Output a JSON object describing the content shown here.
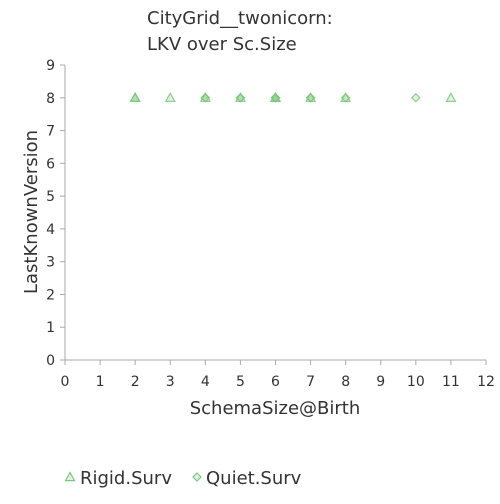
{
  "chart_data": {
    "type": "scatter",
    "title": [
      "CityGrid__twonicorn:",
      "LKV over Sc.Size"
    ],
    "xlabel": "SchemaSize@Birth",
    "ylabel": "LastKnownVersion",
    "xlim": [
      0,
      12
    ],
    "ylim": [
      0,
      9
    ],
    "xticks": [
      "0",
      "1",
      "2",
      "3",
      "4",
      "5",
      "6",
      "7",
      "8",
      "9",
      "10",
      "11",
      "12"
    ],
    "yticks": [
      "0",
      "1",
      "2",
      "3",
      "4",
      "5",
      "6",
      "7",
      "8",
      "9"
    ],
    "grid": false,
    "legend_position": "bottom",
    "series": [
      {
        "name": "Rigid.Surv",
        "marker": "triangle",
        "color": "#7ec87e",
        "points": [
          {
            "x": 2,
            "y": 8
          },
          {
            "x": 2,
            "y": 8
          },
          {
            "x": 2,
            "y": 8
          },
          {
            "x": 3,
            "y": 8
          },
          {
            "x": 4,
            "y": 8
          },
          {
            "x": 5,
            "y": 8
          },
          {
            "x": 6,
            "y": 8
          },
          {
            "x": 6,
            "y": 8
          },
          {
            "x": 7,
            "y": 8
          },
          {
            "x": 8,
            "y": 8
          },
          {
            "x": 11,
            "y": 8
          }
        ]
      },
      {
        "name": "Quiet.Surv",
        "marker": "diamond",
        "color": "#7ec87e",
        "points": [
          {
            "x": 4,
            "y": 8
          },
          {
            "x": 4,
            "y": 8
          },
          {
            "x": 5,
            "y": 8
          },
          {
            "x": 5,
            "y": 8
          },
          {
            "x": 6,
            "y": 8
          },
          {
            "x": 6,
            "y": 8
          },
          {
            "x": 6,
            "y": 8
          },
          {
            "x": 7,
            "y": 8
          },
          {
            "x": 7,
            "y": 8
          },
          {
            "x": 8,
            "y": 8
          },
          {
            "x": 10,
            "y": 8
          }
        ]
      }
    ]
  }
}
